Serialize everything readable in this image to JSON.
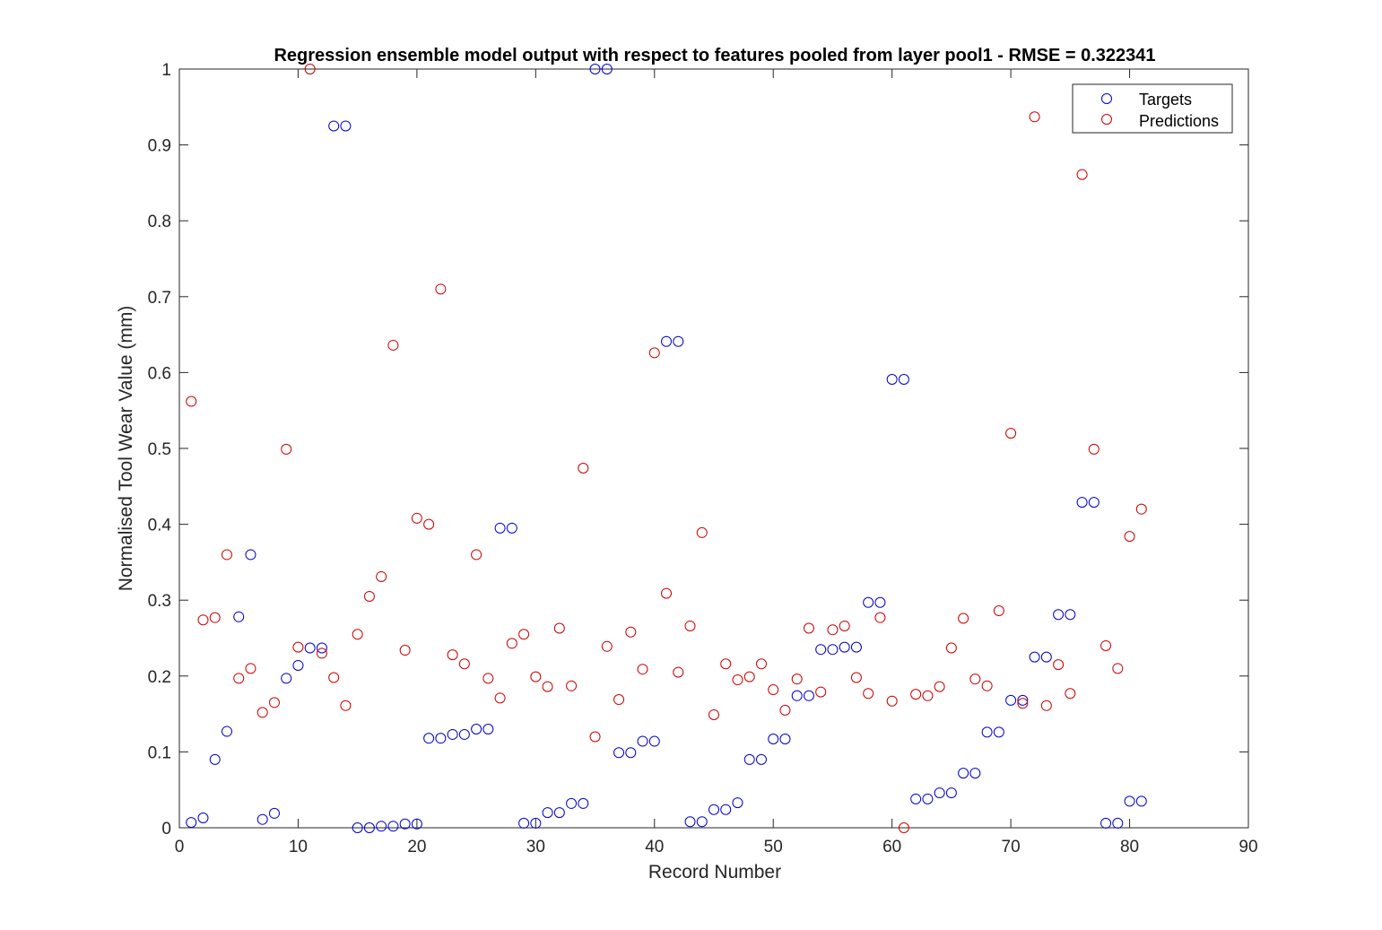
{
  "chart_data": {
    "type": "scatter",
    "title": "Regression ensemble model output with respect to features pooled from layer pool1 - RMSE = 0.322341",
    "xlabel": "Record Number",
    "ylabel": "Normalised Tool Wear Value (mm)",
    "xlim": [
      0,
      90
    ],
    "ylim": [
      0,
      1
    ],
    "xticks": [
      "0",
      "10",
      "20",
      "30",
      "40",
      "50",
      "60",
      "70",
      "80",
      "90"
    ],
    "yticks": [
      "0",
      "0.1",
      "0.2",
      "0.3",
      "0.4",
      "0.5",
      "0.6",
      "0.7",
      "0.8",
      "0.9",
      "1"
    ],
    "grid": false,
    "legend_position": "top-right",
    "x": [
      1,
      2,
      3,
      4,
      5,
      6,
      7,
      8,
      9,
      10,
      11,
      12,
      13,
      14,
      15,
      16,
      17,
      18,
      19,
      20,
      21,
      22,
      23,
      24,
      25,
      26,
      27,
      28,
      29,
      30,
      31,
      32,
      33,
      34,
      35,
      36,
      37,
      38,
      39,
      40,
      41,
      42,
      43,
      44,
      45,
      46,
      47,
      48,
      49,
      50,
      51,
      52,
      53,
      54,
      55,
      56,
      57,
      58,
      59,
      60,
      61,
      62,
      63,
      64,
      65,
      66,
      67,
      68,
      69,
      70,
      71,
      72,
      73,
      74,
      75,
      76,
      77,
      78,
      79,
      80,
      81
    ],
    "series": [
      {
        "name": "Targets",
        "color": "#0000cc",
        "values": [
          0.007,
          0.013,
          0.09,
          0.127,
          0.278,
          0.36,
          0.011,
          0.019,
          0.197,
          0.214,
          0.237,
          0.237,
          0.925,
          0.925,
          0.0,
          0.0,
          0.002,
          0.002,
          0.005,
          0.005,
          0.118,
          0.118,
          0.123,
          0.123,
          0.13,
          0.13,
          0.395,
          0.395,
          0.006,
          0.006,
          0.02,
          0.02,
          0.032,
          0.032,
          1.0,
          1.0,
          0.099,
          0.099,
          0.114,
          0.114,
          0.641,
          0.641,
          0.008,
          0.008,
          0.024,
          0.024,
          0.033,
          0.09,
          0.09,
          0.117,
          0.117,
          0.174,
          0.174,
          0.235,
          0.235,
          0.238,
          0.238,
          0.297,
          0.297,
          0.591,
          0.591,
          0.038,
          0.038,
          0.046,
          0.046,
          0.072,
          0.072,
          0.126,
          0.126,
          0.168,
          0.168,
          0.225,
          0.225,
          0.281,
          0.281,
          0.429,
          0.429,
          0.006,
          0.006,
          0.035,
          0.035
        ]
      },
      {
        "name": "Predictions",
        "color": "#cc0000",
        "values": [
          0.562,
          0.274,
          0.277,
          0.36,
          0.197,
          0.21,
          0.152,
          0.165,
          0.499,
          0.238,
          1.0,
          0.23,
          0.198,
          0.161,
          0.255,
          0.305,
          0.331,
          0.636,
          0.234,
          0.408,
          0.4,
          0.71,
          0.228,
          0.216,
          0.36,
          0.197,
          0.171,
          0.243,
          0.255,
          0.199,
          0.186,
          0.263,
          0.187,
          0.474,
          0.12,
          0.239,
          0.169,
          0.258,
          0.209,
          0.626,
          0.309,
          0.205,
          0.266,
          0.389,
          0.149,
          0.216,
          0.195,
          0.199,
          0.216,
          0.182,
          0.155,
          0.196,
          0.263,
          0.179,
          0.261,
          0.266,
          0.198,
          0.177,
          0.277,
          0.167,
          0.0,
          0.176,
          0.174,
          0.186,
          0.237,
          0.276,
          0.196,
          0.187,
          0.286,
          0.52,
          0.164,
          0.937,
          0.161,
          0.215,
          0.177,
          0.861,
          0.499,
          0.24,
          0.21,
          0.384,
          0.42
        ]
      }
    ]
  }
}
